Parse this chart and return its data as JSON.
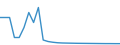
{
  "x": [
    0,
    1,
    2,
    3,
    4,
    5,
    6,
    7,
    8,
    9,
    10,
    11,
    12,
    13,
    14,
    15,
    16,
    17,
    18,
    19,
    20,
    21,
    22,
    23,
    24,
    25
  ],
  "y": [
    5.5,
    5.5,
    5.5,
    1.5,
    1.5,
    3.5,
    6.5,
    4.5,
    7.5,
    1.0,
    0.7,
    0.55,
    0.45,
    0.4,
    0.38,
    0.36,
    0.34,
    0.33,
    0.32,
    0.31,
    0.3,
    0.29,
    0.28,
    0.28,
    0.27,
    0.27
  ],
  "line_color": "#3a8fc7",
  "bg_color": "#ffffff",
  "linewidth": 1.0
}
